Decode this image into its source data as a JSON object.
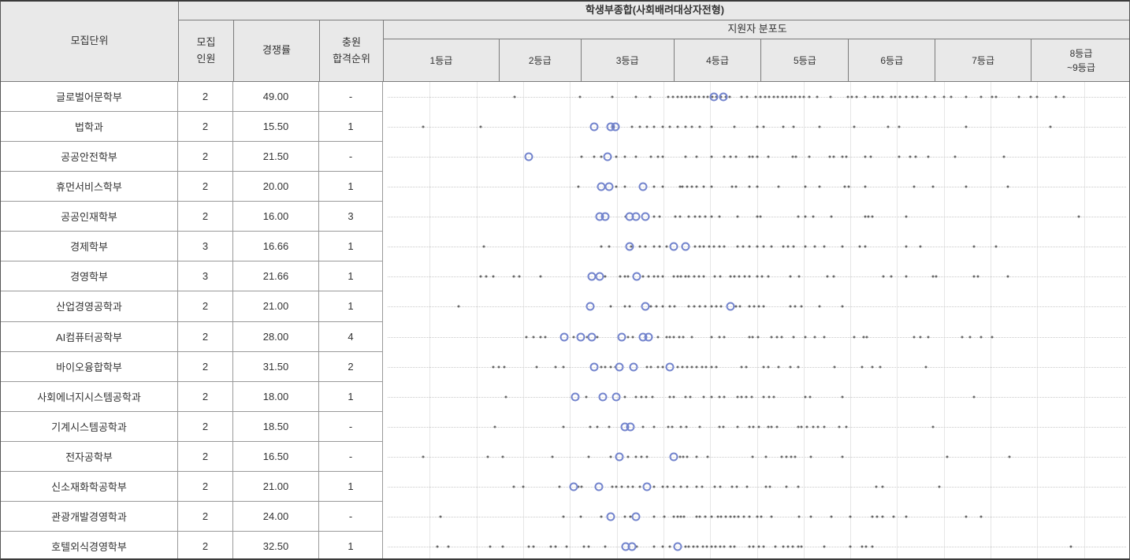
{
  "header": {
    "title": "학생부종합(사회배려대상자전형)",
    "unit_label": "모집단위",
    "quota_label": "모집\n인원",
    "ratio_label": "경쟁률",
    "waitlist_label": "충원\n합격순위",
    "distribution_label": "지원자 분포도",
    "grade_labels": [
      "1등급",
      "2등급",
      "3등급",
      "4등급",
      "5등급",
      "6등급",
      "7등급",
      "8등급\n~9등급"
    ]
  },
  "colors": {
    "header_bg": "#e9e9e9",
    "applicant_dot": "#4f4f4f",
    "admitted_circle": "#7384cd",
    "gridline": "#e6e6e6",
    "baseline": "#c9c9c9"
  },
  "chart_data": {
    "type": "scatter",
    "title": "지원자 분포도",
    "x_axis": {
      "bins": [
        "1등급",
        "2등급",
        "3등급",
        "4등급",
        "5등급",
        "6등급",
        "7등급",
        "8등급~9등급"
      ],
      "grade_marks": [
        1,
        2,
        3,
        4,
        5,
        6,
        7,
        8,
        10
      ],
      "bin_boundaries_fraction": [
        0,
        0.1538,
        0.2634,
        0.3878,
        0.5047,
        0.6217,
        0.7376,
        0.8662,
        1.0
      ],
      "grid": "vertical-halfstep",
      "marker_legend": {
        "applicant": "dot",
        "admitted": "open-circle"
      }
    },
    "rows": [
      {
        "unit": "글로벌어문학부",
        "quota": "2",
        "ratio": "49.00",
        "waitlist_rank": "-",
        "applicant_grades": [
          2.2,
          3.0,
          3.35,
          3.6,
          3.75,
          3.95,
          4.0,
          4.05,
          4.1,
          4.15,
          4.2,
          4.25,
          4.3,
          4.35,
          4.4,
          4.45,
          4.5,
          4.55,
          4.6,
          4.65,
          4.78,
          4.85,
          4.95,
          5.0,
          5.05,
          5.1,
          5.15,
          5.2,
          5.25,
          5.3,
          5.35,
          5.4,
          5.45,
          5.5,
          5.56,
          5.65,
          5.8,
          6.0,
          6.05,
          6.1,
          6.2,
          6.3,
          6.35,
          6.4,
          6.5,
          6.55,
          6.6,
          6.67,
          6.75,
          6.8,
          6.9,
          7.0,
          7.1,
          7.17,
          7.33,
          7.48,
          7.6,
          7.64,
          7.88,
          8.0,
          8.13,
          8.5,
          8.66
        ],
        "admitted_grades": [
          4.47,
          4.58
        ]
      },
      {
        "unit": "법학과",
        "quota": "2",
        "ratio": "15.50",
        "waitlist_rank": "1",
        "applicant_grades": [
          1.35,
          1.85,
          3.36,
          3.56,
          3.64,
          3.72,
          3.8,
          3.89,
          3.97,
          4.05,
          4.14,
          4.22,
          4.31,
          4.44,
          4.7,
          4.96,
          5.04,
          5.26,
          5.38,
          5.68,
          6.07,
          6.46,
          6.59,
          7.33,
          8.4
        ],
        "admitted_grades": [
          3.15,
          3.33,
          3.38
        ]
      },
      {
        "unit": "공공안전학부",
        "quota": "2",
        "ratio": "21.50",
        "waitlist_rank": "-",
        "applicant_grades": [
          3.02,
          3.15,
          3.23,
          3.39,
          3.48,
          3.6,
          3.76,
          3.84,
          3.89,
          4.14,
          4.27,
          4.44,
          4.59,
          4.66,
          4.72,
          4.87,
          4.91,
          4.96,
          5.09,
          5.37,
          5.41,
          5.56,
          5.79,
          5.84,
          5.94,
          5.98,
          6.2,
          6.26,
          6.59,
          6.72,
          6.78,
          6.93,
          7.21,
          7.72
        ],
        "admitted_grades": [
          2.38,
          3.3
        ]
      },
      {
        "unit": "휴먼서비스학부",
        "quota": "2",
        "ratio": "20.00",
        "waitlist_rank": "1",
        "applicant_grades": [
          2.98,
          3.39,
          3.48,
          3.8,
          3.89,
          4.08,
          4.11,
          4.16,
          4.22,
          4.27,
          4.35,
          4.44,
          4.68,
          4.72,
          4.87,
          4.96,
          5.21,
          5.51,
          5.68,
          5.96,
          6.01,
          6.2,
          6.76,
          6.98,
          7.33,
          7.76
        ],
        "admitted_grades": [
          3.23,
          3.31,
          3.68
        ]
      },
      {
        "unit": "공공인재학부",
        "quota": "2",
        "ratio": "16.00",
        "waitlist_rank": "3",
        "applicant_grades": [
          3.49,
          3.8,
          3.86,
          4.03,
          4.08,
          4.18,
          4.25,
          4.31,
          4.37,
          4.44,
          4.53,
          4.74,
          4.96,
          5.0,
          5.43,
          5.51,
          5.6,
          5.81,
          6.2,
          6.24,
          6.28,
          6.67,
          8.96
        ],
        "admitted_grades": [
          3.21,
          3.27,
          3.53,
          3.6,
          3.7
        ]
      },
      {
        "unit": "경제학부",
        "quota": "3",
        "ratio": "16.66",
        "waitlist_rank": "1",
        "applicant_grades": [
          1.88,
          3.23,
          3.31,
          3.55,
          3.64,
          3.7,
          3.8,
          3.86,
          3.93,
          4.25,
          4.31,
          4.35,
          4.41,
          4.47,
          4.53,
          4.59,
          4.74,
          4.8,
          4.87,
          4.96,
          5.04,
          5.13,
          5.26,
          5.32,
          5.38,
          5.51,
          5.62,
          5.73,
          5.94,
          6.14,
          6.2,
          6.67,
          6.84,
          7.41,
          7.64
        ],
        "admitted_grades": [
          3.53,
          4.01,
          4.14
        ]
      },
      {
        "unit": "경영학부",
        "quota": "3",
        "ratio": "21.66",
        "waitlist_rank": "1",
        "applicant_grades": [
          1.85,
          1.9,
          1.96,
          2.19,
          2.26,
          2.52,
          3.27,
          3.43,
          3.48,
          3.52,
          3.68,
          3.74,
          3.8,
          3.84,
          3.89,
          4.01,
          4.05,
          4.09,
          4.14,
          4.18,
          4.24,
          4.3,
          4.35,
          4.48,
          4.54,
          4.66,
          4.7,
          4.76,
          4.82,
          4.87,
          4.96,
          5.02,
          5.09,
          5.34,
          5.44,
          5.77,
          5.84,
          6.41,
          6.5,
          6.67,
          6.98,
          7.02,
          7.41,
          7.45,
          7.76
        ],
        "admitted_grades": [
          3.13,
          3.21,
          3.61
        ]
      },
      {
        "unit": "산업경영공학과",
        "quota": "2",
        "ratio": "21.00",
        "waitlist_rank": "1",
        "applicant_grades": [
          1.66,
          3.33,
          3.48,
          3.53,
          3.76,
          3.82,
          3.89,
          3.97,
          4.02,
          4.18,
          4.24,
          4.31,
          4.37,
          4.44,
          4.5,
          4.55,
          4.72,
          4.77,
          4.87,
          4.93,
          4.98,
          5.04,
          5.34,
          5.4,
          5.47,
          5.68,
          5.94
        ],
        "admitted_grades": [
          3.11,
          3.7,
          4.66
        ]
      },
      {
        "unit": "AI컴퓨터공학부",
        "quota": "2",
        "ratio": "28.00",
        "waitlist_rank": "4",
        "applicant_grades": [
          2.35,
          2.43,
          2.52,
          2.58,
          2.92,
          3.08,
          3.19,
          3.52,
          3.57,
          3.84,
          3.93,
          3.97,
          4.01,
          4.07,
          4.12,
          4.22,
          4.44,
          4.53,
          4.59,
          4.87,
          4.91,
          4.97,
          5.13,
          5.19,
          5.24,
          5.38,
          5.51,
          5.62,
          5.73,
          6.07,
          6.18,
          6.22,
          6.76,
          6.84,
          6.93,
          7.29,
          7.37,
          7.48,
          7.6
        ],
        "admitted_grades": [
          2.81,
          3.01,
          3.13,
          3.45,
          3.68,
          3.74
        ]
      },
      {
        "unit": "바이오융합학부",
        "quota": "2",
        "ratio": "31.50",
        "waitlist_rank": "2",
        "applicant_grades": [
          1.96,
          2.01,
          2.08,
          2.47,
          2.7,
          2.8,
          3.23,
          3.27,
          3.33,
          3.38,
          3.72,
          3.76,
          3.84,
          3.89,
          4.05,
          4.11,
          4.16,
          4.22,
          4.27,
          4.33,
          4.38,
          4.44,
          4.5,
          4.78,
          4.84,
          5.04,
          5.09,
          5.21,
          5.34,
          5.43,
          5.85,
          6.16,
          6.28,
          6.37,
          6.9
        ],
        "admitted_grades": [
          3.15,
          3.42,
          3.58,
          3.97
        ]
      },
      {
        "unit": "사회에너지시스템공학과",
        "quota": "2",
        "ratio": "18.00",
        "waitlist_rank": "1",
        "applicant_grades": [
          2.1,
          3.07,
          3.48,
          3.6,
          3.66,
          3.71,
          3.78,
          3.97,
          4.01,
          4.14,
          4.2,
          4.35,
          4.44,
          4.53,
          4.59,
          4.74,
          4.78,
          4.84,
          4.9,
          5.04,
          5.1,
          5.15,
          5.51,
          5.57,
          5.94,
          7.41
        ],
        "admitted_grades": [
          2.94,
          3.25,
          3.39
        ]
      },
      {
        "unit": "기계시스템공학과",
        "quota": "2",
        "ratio": "18.50",
        "waitlist_rank": "-",
        "applicant_grades": [
          1.97,
          2.8,
          3.11,
          3.19,
          3.31,
          3.68,
          3.8,
          3.95,
          3.99,
          4.09,
          4.15,
          4.31,
          4.53,
          4.58,
          4.74,
          4.87,
          4.92,
          4.98,
          5.09,
          5.13,
          5.19,
          5.43,
          5.47,
          5.53,
          5.6,
          5.66,
          5.73,
          5.9,
          5.98,
          6.98
        ],
        "admitted_grades": [
          3.48,
          3.54
        ]
      },
      {
        "unit": "전자공학부",
        "quota": "2",
        "ratio": "16.50",
        "waitlist_rank": "-",
        "applicant_grades": [
          1.35,
          1.91,
          2.06,
          2.66,
          3.09,
          3.33,
          3.52,
          3.6,
          3.66,
          3.72,
          4.08,
          4.12,
          4.16,
          4.27,
          4.4,
          4.91,
          5.06,
          5.24,
          5.3,
          5.35,
          5.4,
          5.58,
          5.94,
          7.13,
          7.78
        ],
        "admitted_grades": [
          3.42,
          4.01
        ]
      },
      {
        "unit": "신소재화학공학부",
        "quota": "2",
        "ratio": "21.00",
        "waitlist_rank": "1",
        "applicant_grades": [
          2.19,
          2.31,
          2.75,
          2.98,
          3.02,
          3.35,
          3.39,
          3.45,
          3.52,
          3.57,
          3.64,
          3.8,
          3.89,
          3.94,
          4.01,
          4.09,
          4.16,
          4.27,
          4.33,
          4.48,
          4.54,
          4.68,
          4.73,
          4.85,
          5.06,
          5.11,
          5.3,
          5.43,
          6.33,
          6.4,
          7.05
        ],
        "admitted_grades": [
          2.92,
          3.2,
          3.72
        ]
      },
      {
        "unit": "관광개발경영학과",
        "quota": "2",
        "ratio": "24.00",
        "waitlist_rank": "-",
        "applicant_grades": [
          1.5,
          2.8,
          3.01,
          3.23,
          3.48,
          3.54,
          3.8,
          3.91,
          4.01,
          4.05,
          4.09,
          4.13,
          4.27,
          4.31,
          4.37,
          4.44,
          4.51,
          4.55,
          4.6,
          4.66,
          4.7,
          4.75,
          4.81,
          4.87,
          4.96,
          5.01,
          5.13,
          5.44,
          5.58,
          5.81,
          6.03,
          6.28,
          6.34,
          6.4,
          6.53,
          6.67,
          7.33,
          7.48
        ],
        "admitted_grades": [
          3.33,
          3.6
        ]
      },
      {
        "unit": "호텔외식경영학부",
        "quota": "2",
        "ratio": "32.50",
        "waitlist_rank": "1",
        "applicant_grades": [
          1.47,
          1.57,
          1.93,
          2.06,
          2.38,
          2.43,
          2.64,
          2.7,
          2.84,
          3.04,
          3.09,
          3.27,
          3.61,
          3.8,
          3.89,
          3.97,
          4.14,
          4.18,
          4.23,
          4.28,
          4.34,
          4.39,
          4.44,
          4.49,
          4.54,
          4.59,
          4.66,
          4.7,
          4.87,
          4.92,
          4.98,
          5.04,
          5.17,
          5.26,
          5.32,
          5.37,
          5.43,
          5.47,
          5.73,
          6.03,
          6.16,
          6.21,
          6.28,
          8.81
        ],
        "admitted_grades": [
          3.49,
          3.56,
          4.05
        ]
      }
    ]
  }
}
